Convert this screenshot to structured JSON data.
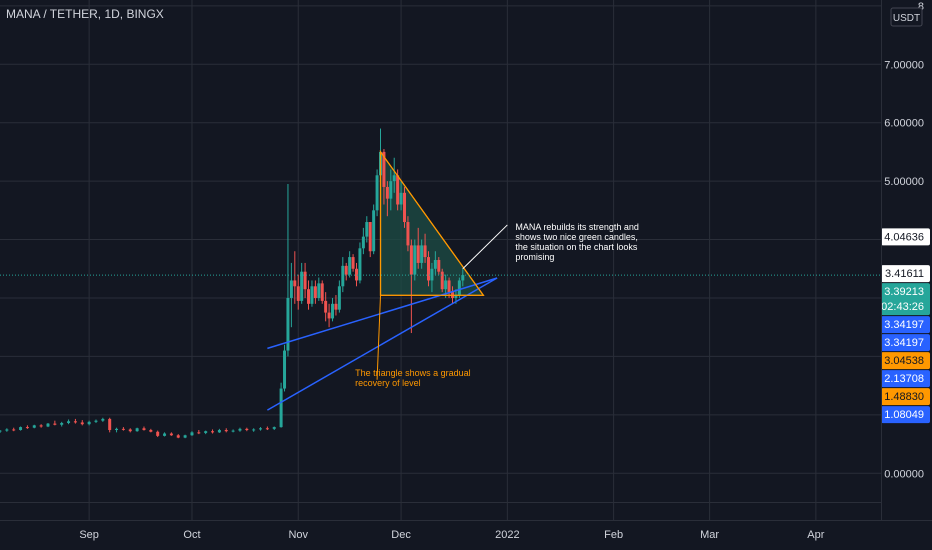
{
  "header": {
    "title": "MANA / TETHER, 1D, BINGX",
    "currency": "USDT"
  },
  "price_axis": {
    "ticks": [
      {
        "label": "8",
        "value": 8
      },
      {
        "label": "7.00000",
        "value": 7
      },
      {
        "label": "6.00000",
        "value": 6
      },
      {
        "label": "5.00000",
        "value": 5
      },
      {
        "label": "0.00000",
        "value": 0
      }
    ],
    "badges": [
      {
        "label": "4.04636",
        "value": 4.04636,
        "bg": "#ffffff",
        "fg": "#131722"
      },
      {
        "label": "3.41611",
        "value": 3.41611,
        "bg": "#ffffff",
        "fg": "#131722"
      },
      {
        "label": "3.34197",
        "value": 3.34197,
        "bg": "#2962ff",
        "fg": "#ffffff"
      },
      {
        "label": "3.34197",
        "value": 3.34197,
        "bg": "#2962ff",
        "fg": "#ffffff"
      },
      {
        "label": "3.04538",
        "value": 3.04538,
        "bg": "#ff9800",
        "fg": "#131722"
      },
      {
        "label": "2.13708",
        "value": 2.13708,
        "bg": "#2962ff",
        "fg": "#ffffff"
      },
      {
        "label": "1.48830",
        "value": 1.4883,
        "bg": "#ff9800",
        "fg": "#131722"
      },
      {
        "label": "1.08049",
        "value": 1.08049,
        "bg": "#2962ff",
        "fg": "#ffffff"
      }
    ],
    "last_price": {
      "label": "3.39213",
      "countdown": "02:43:26",
      "value": 3.39213,
      "bg": "#26a69a",
      "fg": "#ffffff"
    }
  },
  "time_axis": {
    "ticks": [
      {
        "label": "Sep",
        "date": "2021-09-01"
      },
      {
        "label": "Oct",
        "date": "2021-10-01"
      },
      {
        "label": "Nov",
        "date": "2021-11-01"
      },
      {
        "label": "Dec",
        "date": "2021-12-01"
      },
      {
        "label": "2022",
        "date": "2022-01-01"
      },
      {
        "label": "Feb",
        "date": "2022-02-01"
      },
      {
        "label": "Mar",
        "date": "2022-03-01"
      },
      {
        "label": "Apr",
        "date": "2022-04-01"
      }
    ]
  },
  "annotations": {
    "triangle_note": [
      "The triangle shows a gradual",
      "recovery of level"
    ],
    "candle_note": [
      "MANA rebuilds its strength and",
      "shows two nice green candles,",
      "the situation on the chart looks",
      "promising"
    ]
  },
  "drawings": {
    "triangle": {
      "color": "#ff9800",
      "fill": "#1e4d45",
      "points": [
        {
          "date": "2021-11-25",
          "price": 5.5
        },
        {
          "date": "2021-12-25",
          "price": 3.04538
        },
        {
          "date": "2021-11-25",
          "price": 3.04538
        }
      ]
    },
    "upper_trendline": {
      "color": "#2962ff",
      "from": {
        "date": "2021-10-23",
        "price": 2.13708
      },
      "to": {
        "date": "2021-12-29",
        "price": 3.34197
      }
    },
    "lower_trendline": {
      "color": "#2962ff",
      "from": {
        "date": "2021-10-23",
        "price": 1.08049
      },
      "to": {
        "date": "2021-12-29",
        "price": 3.34197
      }
    },
    "triangle_pointer": {
      "color": "#ff9800",
      "from": {
        "date": "2021-11-25",
        "price": 3.04538
      },
      "to": {
        "date": "2021-11-24",
        "price": 1.6
      }
    },
    "candle_pointer": {
      "color": "#ffffff",
      "from": {
        "date": "2021-12-19",
        "price": 3.5
      },
      "to": {
        "date": "2022-01-01",
        "price": 4.25
      }
    }
  },
  "colors": {
    "up": "#26a69a",
    "down": "#ef5350",
    "grid": "#2a2e39",
    "text": "#d1d4dc",
    "background": "#131722"
  },
  "chart_data": {
    "type": "candlestick",
    "title": "MANA / TETHER, 1D, BINGX",
    "ylabel": "USDT",
    "ylim": [
      -0.8,
      8.1
    ],
    "xlim": [
      "2021-08-06",
      "2022-04-20"
    ],
    "grid": true,
    "last_price": 3.39213,
    "ohlc": [
      [
        "2021-08-06",
        0.72,
        0.74,
        0.69,
        0.73
      ],
      [
        "2021-08-08",
        0.73,
        0.77,
        0.71,
        0.75
      ],
      [
        "2021-08-10",
        0.75,
        0.78,
        0.72,
        0.74
      ],
      [
        "2021-08-12",
        0.74,
        0.8,
        0.73,
        0.79
      ],
      [
        "2021-08-14",
        0.79,
        0.82,
        0.76,
        0.78
      ],
      [
        "2021-08-16",
        0.78,
        0.83,
        0.77,
        0.82
      ],
      [
        "2021-08-18",
        0.82,
        0.84,
        0.78,
        0.8
      ],
      [
        "2021-08-20",
        0.8,
        0.86,
        0.79,
        0.85
      ],
      [
        "2021-08-22",
        0.85,
        0.9,
        0.82,
        0.83
      ],
      [
        "2021-08-24",
        0.83,
        0.88,
        0.8,
        0.86
      ],
      [
        "2021-08-26",
        0.86,
        0.92,
        0.84,
        0.89
      ],
      [
        "2021-08-28",
        0.89,
        0.93,
        0.85,
        0.87
      ],
      [
        "2021-08-30",
        0.87,
        0.91,
        0.82,
        0.84
      ],
      [
        "2021-09-01",
        0.84,
        0.9,
        0.82,
        0.88
      ],
      [
        "2021-09-03",
        0.88,
        0.92,
        0.86,
        0.9
      ],
      [
        "2021-09-05",
        0.9,
        0.95,
        0.88,
        0.93
      ],
      [
        "2021-09-07",
        0.93,
        0.95,
        0.7,
        0.74
      ],
      [
        "2021-09-09",
        0.74,
        0.78,
        0.7,
        0.76
      ],
      [
        "2021-09-11",
        0.76,
        0.79,
        0.73,
        0.75
      ],
      [
        "2021-09-13",
        0.75,
        0.77,
        0.7,
        0.72
      ],
      [
        "2021-09-15",
        0.72,
        0.78,
        0.71,
        0.77
      ],
      [
        "2021-09-17",
        0.77,
        0.8,
        0.73,
        0.74
      ],
      [
        "2021-09-19",
        0.74,
        0.76,
        0.7,
        0.71
      ],
      [
        "2021-09-21",
        0.71,
        0.73,
        0.62,
        0.64
      ],
      [
        "2021-09-23",
        0.64,
        0.7,
        0.63,
        0.68
      ],
      [
        "2021-09-25",
        0.68,
        0.7,
        0.64,
        0.65
      ],
      [
        "2021-09-27",
        0.65,
        0.67,
        0.6,
        0.61
      ],
      [
        "2021-09-29",
        0.61,
        0.66,
        0.6,
        0.65
      ],
      [
        "2021-10-01",
        0.65,
        0.72,
        0.64,
        0.7
      ],
      [
        "2021-10-03",
        0.7,
        0.74,
        0.67,
        0.69
      ],
      [
        "2021-10-05",
        0.69,
        0.73,
        0.67,
        0.72
      ],
      [
        "2021-10-07",
        0.72,
        0.75,
        0.68,
        0.7
      ],
      [
        "2021-10-09",
        0.7,
        0.76,
        0.69,
        0.74
      ],
      [
        "2021-10-11",
        0.74,
        0.77,
        0.7,
        0.72
      ],
      [
        "2021-10-13",
        0.72,
        0.75,
        0.7,
        0.73
      ],
      [
        "2021-10-15",
        0.73,
        0.78,
        0.71,
        0.76
      ],
      [
        "2021-10-17",
        0.76,
        0.78,
        0.72,
        0.74
      ],
      [
        "2021-10-19",
        0.74,
        0.77,
        0.71,
        0.75
      ],
      [
        "2021-10-21",
        0.75,
        0.79,
        0.73,
        0.77
      ],
      [
        "2021-10-23",
        0.77,
        0.8,
        0.74,
        0.76
      ],
      [
        "2021-10-25",
        0.76,
        0.8,
        0.74,
        0.79
      ],
      [
        "2021-10-27",
        0.79,
        1.55,
        0.78,
        1.45
      ],
      [
        "2021-10-28",
        1.45,
        2.2,
        1.4,
        2.1
      ],
      [
        "2021-10-29",
        2.1,
        4.95,
        2.0,
        3.0
      ],
      [
        "2021-10-30",
        3.0,
        3.6,
        2.5,
        3.3
      ],
      [
        "2021-10-31",
        3.3,
        3.8,
        2.9,
        3.2
      ],
      [
        "2021-11-01",
        3.2,
        3.4,
        2.8,
        2.95
      ],
      [
        "2021-11-02",
        2.95,
        3.6,
        2.9,
        3.45
      ],
      [
        "2021-11-03",
        3.45,
        3.6,
        3.0,
        3.15
      ],
      [
        "2021-11-04",
        3.15,
        3.3,
        2.8,
        2.9
      ],
      [
        "2021-11-05",
        2.9,
        3.3,
        2.85,
        3.2
      ],
      [
        "2021-11-06",
        3.2,
        3.3,
        2.9,
        3.0
      ],
      [
        "2021-11-07",
        3.0,
        3.35,
        2.95,
        3.25
      ],
      [
        "2021-11-08",
        3.25,
        3.3,
        2.9,
        2.95
      ],
      [
        "2021-11-09",
        2.95,
        3.1,
        2.6,
        2.75
      ],
      [
        "2021-11-10",
        2.75,
        2.9,
        2.5,
        2.65
      ],
      [
        "2021-11-11",
        2.65,
        3.0,
        2.6,
        2.9
      ],
      [
        "2021-11-12",
        2.9,
        3.05,
        2.7,
        2.8
      ],
      [
        "2021-11-13",
        2.8,
        3.3,
        2.75,
        3.2
      ],
      [
        "2021-11-14",
        3.2,
        3.7,
        3.1,
        3.55
      ],
      [
        "2021-11-15",
        3.55,
        3.6,
        3.3,
        3.4
      ],
      [
        "2021-11-16",
        3.4,
        3.8,
        3.35,
        3.7
      ],
      [
        "2021-11-17",
        3.7,
        3.75,
        3.45,
        3.5
      ],
      [
        "2021-11-18",
        3.5,
        3.6,
        3.2,
        3.3
      ],
      [
        "2021-11-19",
        3.3,
        3.95,
        3.25,
        3.85
      ],
      [
        "2021-11-20",
        3.85,
        4.2,
        3.75,
        4.05
      ],
      [
        "2021-11-21",
        4.05,
        4.4,
        3.95,
        4.3
      ],
      [
        "2021-11-22",
        4.3,
        4.3,
        3.7,
        3.8
      ],
      [
        "2021-11-23",
        3.8,
        4.6,
        3.75,
        4.5
      ],
      [
        "2021-11-24",
        4.5,
        5.2,
        4.4,
        5.1
      ],
      [
        "2021-11-25",
        5.1,
        5.9,
        5.0,
        5.5
      ],
      [
        "2021-11-26",
        5.5,
        5.55,
        4.6,
        4.9
      ],
      [
        "2021-11-27",
        4.9,
        5.0,
        4.4,
        4.7
      ],
      [
        "2021-11-28",
        4.7,
        5.2,
        4.5,
        5.0
      ],
      [
        "2021-11-29",
        5.0,
        5.4,
        4.8,
        5.1
      ],
      [
        "2021-11-30",
        5.1,
        5.2,
        4.5,
        4.6
      ],
      [
        "2021-12-01",
        4.6,
        5.0,
        4.5,
        4.8
      ],
      [
        "2021-12-02",
        4.8,
        4.9,
        4.2,
        4.3
      ],
      [
        "2021-12-03",
        4.3,
        4.4,
        3.8,
        3.9
      ],
      [
        "2021-12-04",
        3.9,
        4.0,
        2.4,
        3.4
      ],
      [
        "2021-12-05",
        3.4,
        4.0,
        3.3,
        3.9
      ],
      [
        "2021-12-06",
        3.9,
        4.2,
        3.5,
        3.6
      ],
      [
        "2021-12-07",
        3.6,
        4.0,
        3.5,
        3.9
      ],
      [
        "2021-12-08",
        3.9,
        4.1,
        3.6,
        3.7
      ],
      [
        "2021-12-09",
        3.7,
        3.8,
        3.2,
        3.3
      ],
      [
        "2021-12-10",
        3.3,
        3.6,
        3.1,
        3.5
      ],
      [
        "2021-12-11",
        3.5,
        3.8,
        3.4,
        3.65
      ],
      [
        "2021-12-12",
        3.65,
        3.7,
        3.4,
        3.45
      ],
      [
        "2021-12-13",
        3.45,
        3.5,
        3.1,
        3.15
      ],
      [
        "2021-12-14",
        3.15,
        3.4,
        3.0,
        3.3
      ],
      [
        "2021-12-15",
        3.3,
        3.35,
        3.0,
        3.1
      ],
      [
        "2021-12-16",
        3.1,
        3.2,
        2.9,
        3.0
      ],
      [
        "2021-12-17",
        3.0,
        3.15,
        2.9,
        3.05
      ],
      [
        "2021-12-18",
        3.05,
        3.35,
        3.0,
        3.3
      ],
      [
        "2021-12-19",
        3.3,
        3.5,
        3.2,
        3.39213
      ]
    ]
  }
}
